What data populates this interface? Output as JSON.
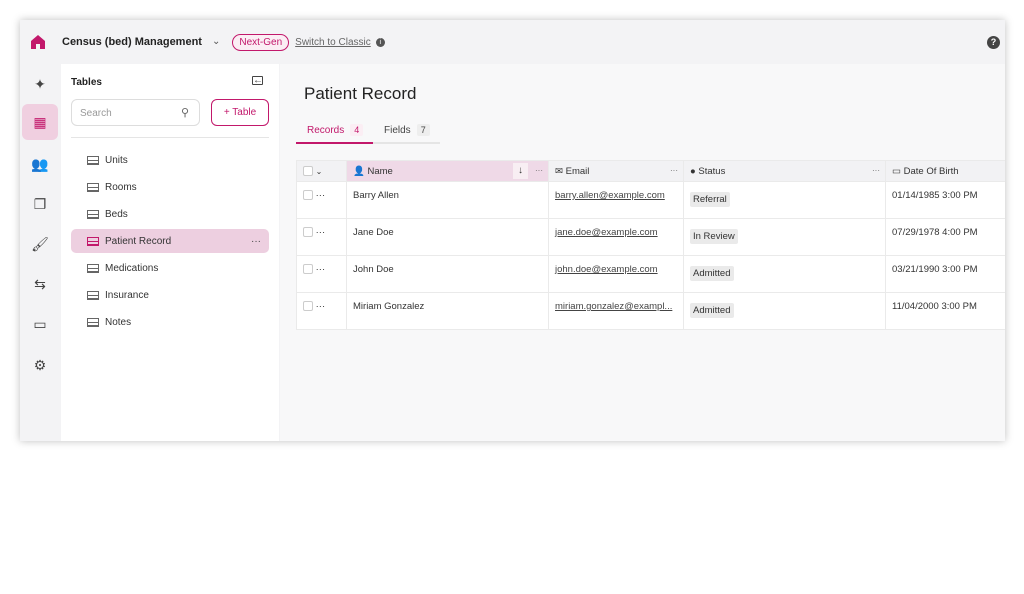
{
  "header": {
    "app_title": "Census (bed) Management",
    "badge": "Next-Gen",
    "switch_link": "Switch to Classic",
    "help": "?"
  },
  "rail": [
    "sparkles-icon",
    "table-icon",
    "users-icon",
    "documents-icon",
    "brush-icon",
    "workflow-icon",
    "card-icon",
    "gear-icon"
  ],
  "sidebar": {
    "title": "Tables",
    "search_placeholder": "Search",
    "add_table": "+ Table",
    "items": [
      {
        "label": "Units"
      },
      {
        "label": "Rooms"
      },
      {
        "label": "Beds"
      },
      {
        "label": "Patient Record",
        "active": true
      },
      {
        "label": "Medications"
      },
      {
        "label": "Insurance"
      },
      {
        "label": "Notes"
      }
    ]
  },
  "main": {
    "title": "Patient Record",
    "tabs": [
      {
        "label": "Records",
        "count": "4"
      },
      {
        "label": "Fields",
        "count": "7"
      }
    ],
    "columns": [
      "Name",
      "Email",
      "Status",
      "Date Of Birth"
    ],
    "rows": [
      {
        "name": "Barry Allen",
        "email": "barry.allen@example.com",
        "status": "Referral",
        "dob": "01/14/1985 3:00 PM"
      },
      {
        "name": "Jane Doe",
        "email": "jane.doe@example.com",
        "status": "In Review",
        "dob": "07/29/1978 4:00 PM"
      },
      {
        "name": "John Doe",
        "email": "john.doe@example.com",
        "status": "Admitted",
        "dob": "03/21/1990 3:00 PM"
      },
      {
        "name": "Miriam Gonzalez",
        "email": "miriam.gonzalez@exampl...",
        "status": "Admitted",
        "dob": "11/04/2000 3:00 PM"
      }
    ]
  },
  "colors": {
    "accent": "#c2186b"
  }
}
